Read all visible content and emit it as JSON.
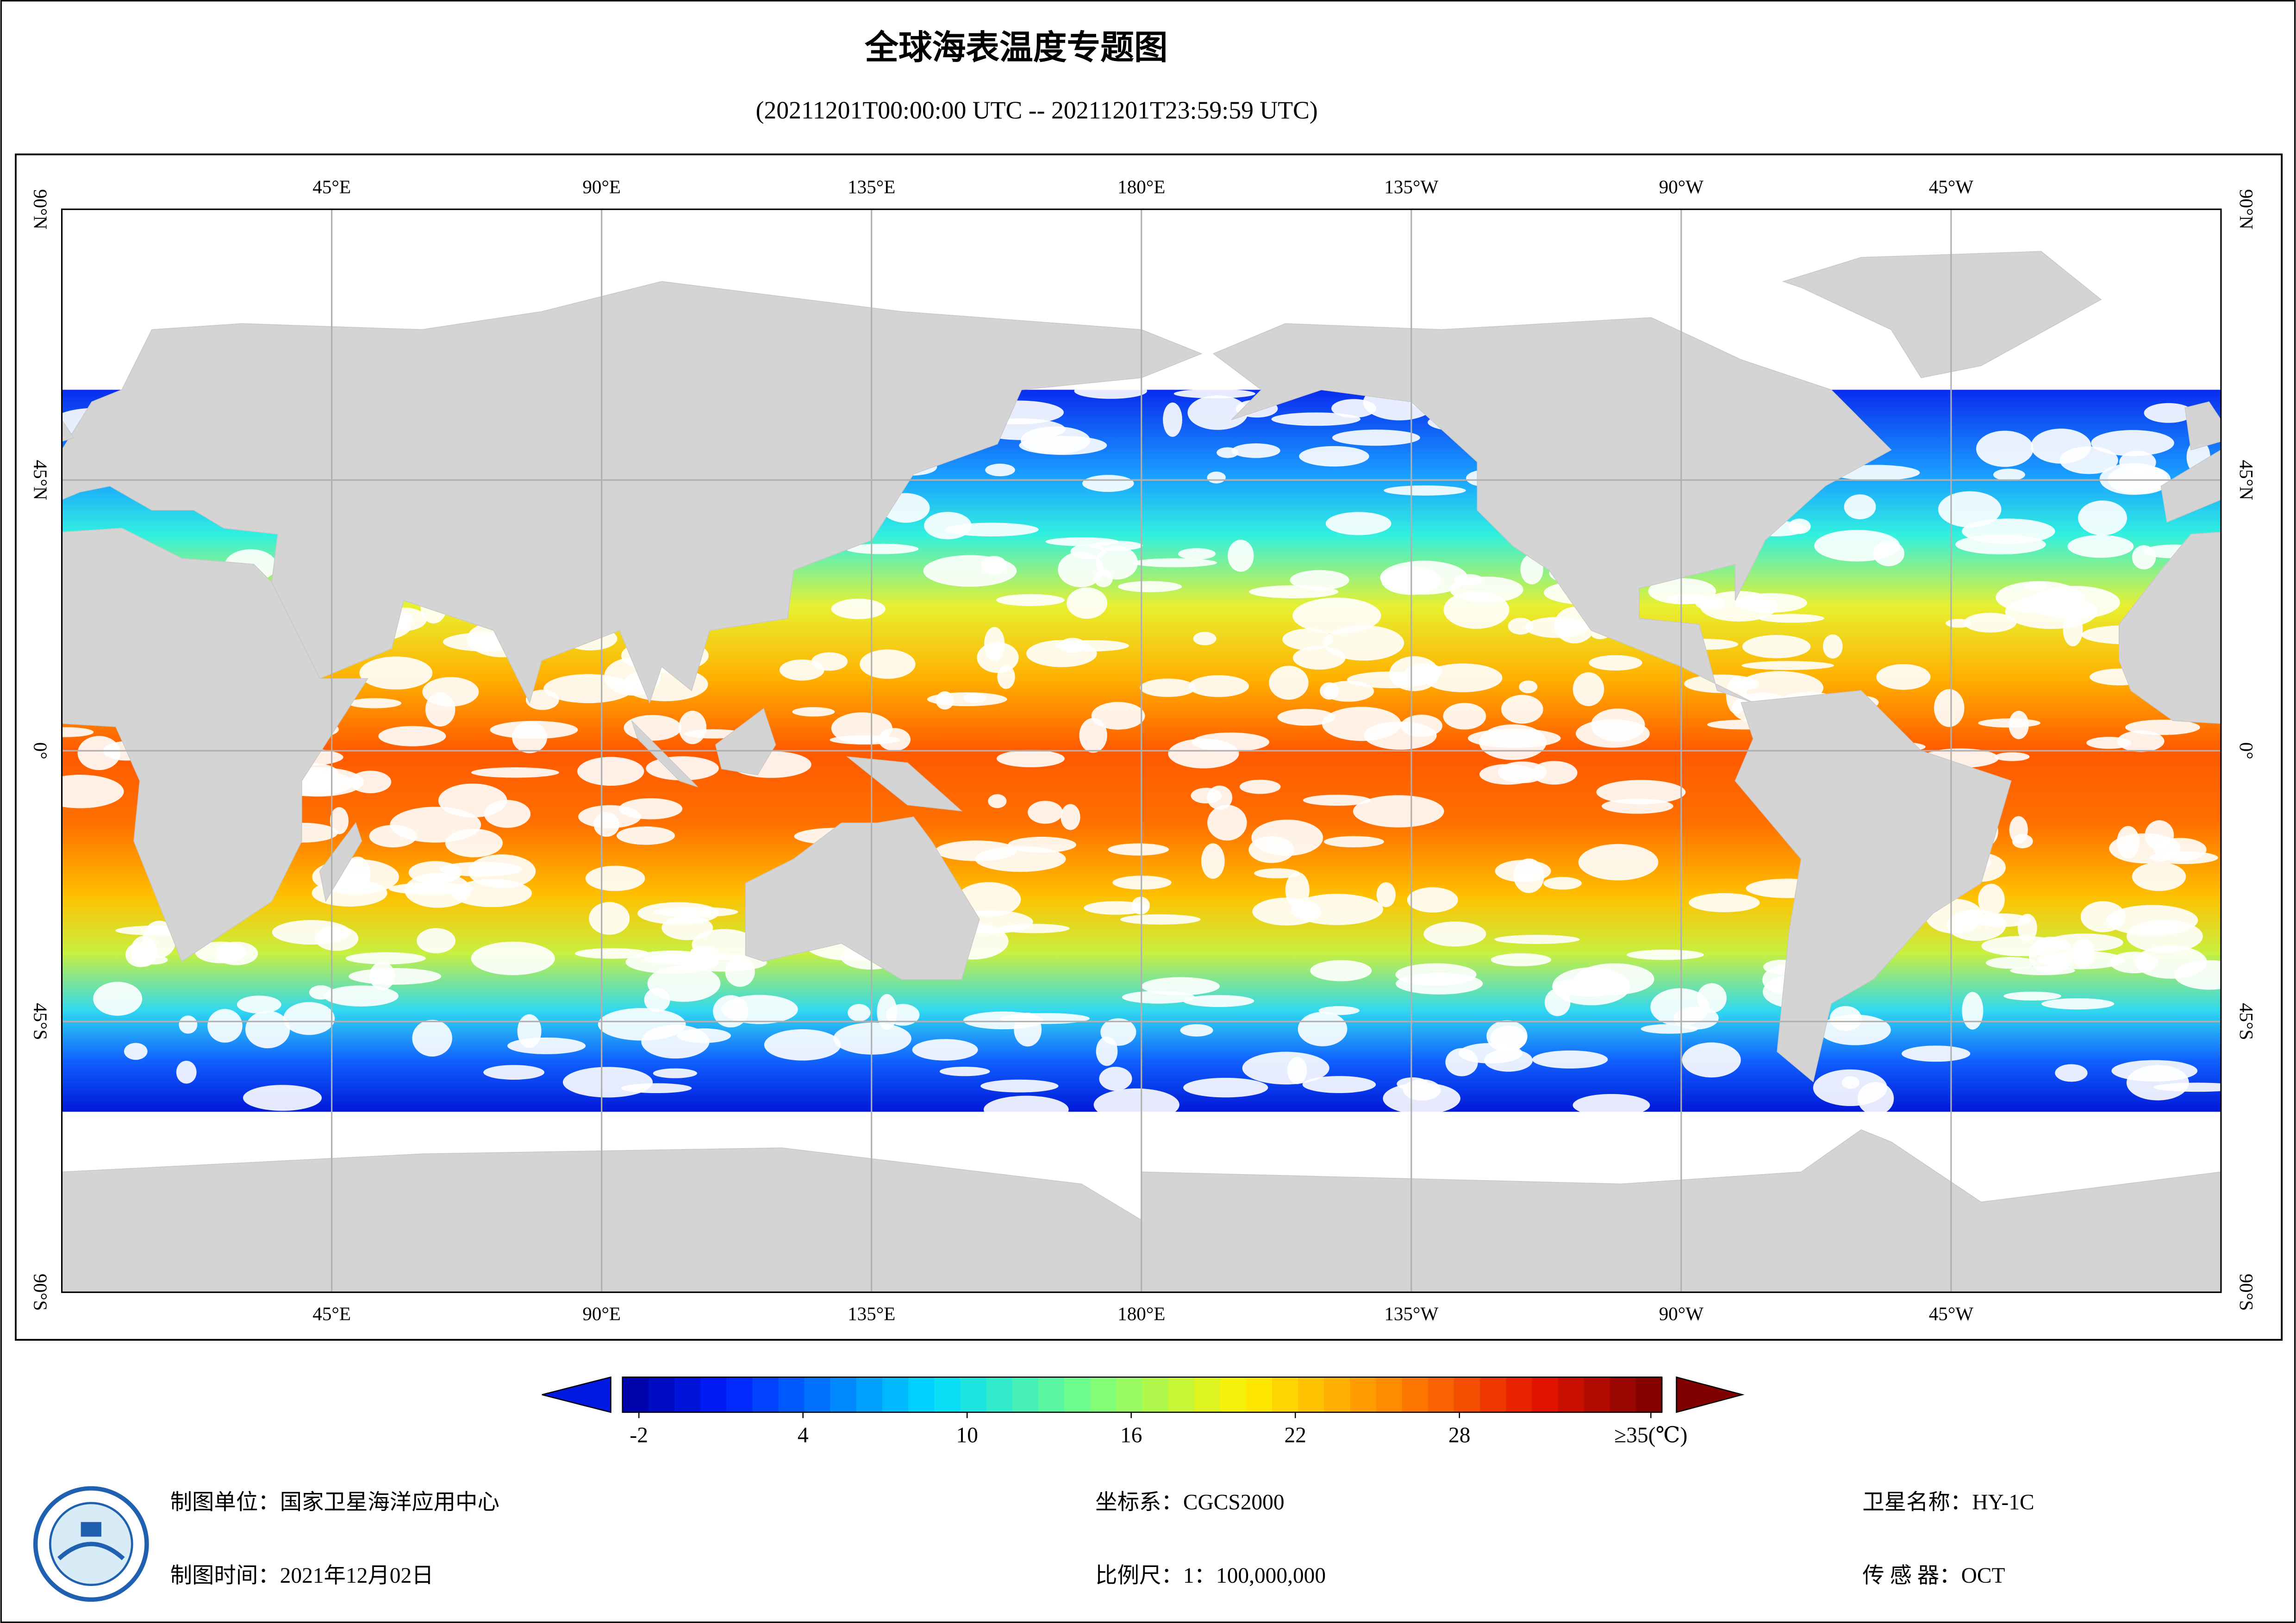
{
  "header": {
    "title": "全球海表温度专题图",
    "subtitle": "(20211201T00:00:00 UTC -- 20211201T23:59:59 UTC)"
  },
  "map": {
    "lon_range": [
      0,
      360
    ],
    "lat_range": [
      -90,
      90
    ],
    "lon_ticks": [
      {
        "value": 45,
        "label": "45°E"
      },
      {
        "value": 90,
        "label": "90°E"
      },
      {
        "value": 135,
        "label": "135°E"
      },
      {
        "value": 180,
        "label": "180°E"
      },
      {
        "value": 225,
        "label": "135°W"
      },
      {
        "value": 270,
        "label": "90°W"
      },
      {
        "value": 315,
        "label": "45°W"
      }
    ],
    "lat_ticks": [
      {
        "value": 90,
        "label": "90°N"
      },
      {
        "value": 45,
        "label": "45°N"
      },
      {
        "value": 0,
        "label": "0°"
      },
      {
        "value": -45,
        "label": "45°S"
      },
      {
        "value": -90,
        "label": "90°S"
      }
    ]
  },
  "colorbar": {
    "range": [
      -2.6,
      35.4
    ],
    "ticks": [
      -2,
      4,
      10,
      16,
      22,
      28,
      {
        "value": 35,
        "label": "≥35(℃)"
      }
    ]
  },
  "footer": {
    "unit": "制图单位：国家卫星海洋应用中心",
    "time": "制图时间：2021年12月02日",
    "crs": "坐标系：CGCS2000",
    "scale": "比例尺：1：100,000,000",
    "satellite": "卫星名称：HY-1C",
    "sensor": "传 感 器：OCT"
  }
}
